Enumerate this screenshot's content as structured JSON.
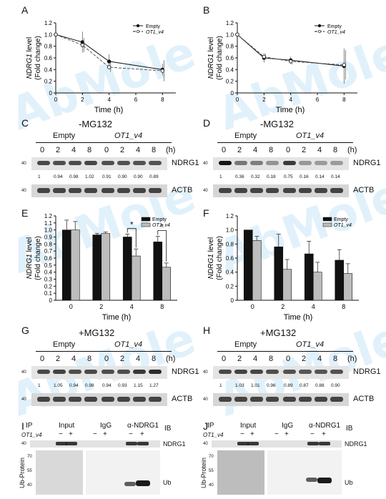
{
  "panel_letters": {
    "A": "A",
    "B": "B",
    "C": "C",
    "D": "D",
    "E": "E",
    "F": "F",
    "G": "G",
    "H": "H",
    "I": "I",
    "J": "J"
  },
  "watermark": "AbMole",
  "lineplots": {
    "ylabel_italic": "NDRG1",
    "ylabel_suffix": " level",
    "ylabel2": "(Fold change)",
    "xlabel": "Time (h)",
    "legend": [
      "Empty",
      "OT1_v4"
    ]
  },
  "barplots": {
    "ylabel_italic": "NDRG1",
    "ylabel_suffix": " level",
    "ylabel2": "(Fold change)",
    "xlabel": "Time (h)",
    "legend": [
      "Empty",
      "OT1_v4"
    ],
    "sig": "*"
  },
  "blots": {
    "C": {
      "title": "-MG132",
      "group1": "Empty",
      "group2": "OT1_v4",
      "times": [
        "0",
        "2",
        "4",
        "8"
      ],
      "unit": "(h)",
      "band1": "NDRG1",
      "band2": "ACTB",
      "mw": "40",
      "quant": [
        "1",
        "0.94",
        "0.98",
        "1.02",
        "0.91",
        "0.90",
        "0.90",
        "0.89"
      ]
    },
    "D": {
      "title": "-MG132",
      "group1": "Empty",
      "group2": "OT1_v4",
      "times": [
        "0",
        "2",
        "4",
        "8"
      ],
      "unit": "(h)",
      "band1": "NDRG1",
      "band2": "ACTB",
      "mw": "40",
      "quant": [
        "1",
        "0.36",
        "0.32",
        "0.18",
        "0.75",
        "0.16",
        "0.14",
        "0.14"
      ]
    },
    "G": {
      "title": "+MG132",
      "group1": "Empty",
      "group2": "OT1_v4",
      "times": [
        "0",
        "2",
        "4",
        "8"
      ],
      "unit": "(h)",
      "band1": "NDRG1",
      "band2": "ACTB",
      "mw": "40",
      "quant": [
        "1",
        "1.05",
        "0.94",
        "0.98",
        "0.94",
        "0.93",
        "1.15",
        "1.27"
      ]
    },
    "H": {
      "title": "+MG132",
      "group1": "Empty",
      "group2": "OT1_v4",
      "times": [
        "0",
        "2",
        "4",
        "8"
      ],
      "unit": "(h)",
      "band1": "NDRG1",
      "band2": "ACTB",
      "mw": "40",
      "quant": [
        "1",
        "1.03",
        "1.01",
        "0.96",
        "0.89",
        "0.87",
        "0.88",
        "0.90"
      ]
    }
  },
  "ip": {
    "IP": "IP",
    "IB": "IB",
    "input": "Input",
    "igg": "IgG",
    "anti": "α-NDRG1",
    "ot1": "OT1_v4",
    "minus": "−",
    "plus": "+",
    "band_ndrg1": "NDRG1",
    "band_ub": "Ub",
    "side": "Ub-Protein",
    "mw_I": [
      "40",
      "70",
      "55",
      "40"
    ],
    "mw_J": [
      "40",
      "70",
      "55",
      "40"
    ]
  },
  "chart_data": [
    {
      "panel": "A",
      "type": "line",
      "x": [
        0,
        2,
        4,
        8
      ],
      "xticks": [
        "0",
        "2",
        "4",
        "6",
        "8"
      ],
      "yticks": [
        "0",
        "0.2",
        "0.4",
        "0.6",
        "0.8",
        "1.0",
        "1.2"
      ],
      "xlim": [
        0,
        9
      ],
      "ylim": [
        0,
        1.2
      ],
      "series": [
        {
          "name": "Empty",
          "values": [
            1.0,
            0.87,
            0.54,
            0.4
          ]
        },
        {
          "name": "OT1_v4",
          "values": [
            1.0,
            0.82,
            0.44,
            0.38
          ]
        }
      ],
      "errors": [
        [
          0,
          0.18,
          0.12,
          0.1
        ],
        [
          0,
          0.12,
          0.08,
          0.18
        ]
      ]
    },
    {
      "panel": "B",
      "type": "line",
      "x": [
        0,
        2,
        4,
        8
      ],
      "xticks": [
        "0",
        "2",
        "4",
        "6",
        "8"
      ],
      "yticks": [
        "0",
        "0.2",
        "0.4",
        "0.6",
        "0.8",
        "1.0",
        "1.2"
      ],
      "xlim": [
        0,
        9
      ],
      "ylim": [
        0,
        1.2
      ],
      "series": [
        {
          "name": "Empty",
          "values": [
            1.0,
            0.6,
            0.56,
            0.46
          ]
        },
        {
          "name": "OT1_v4",
          "values": [
            1.0,
            0.62,
            0.54,
            0.48
          ]
        }
      ],
      "errors": [
        [
          0,
          0.08,
          0.06,
          0.3
        ],
        [
          0,
          0.05,
          0.05,
          0.25
        ]
      ]
    },
    {
      "panel": "E",
      "type": "bar",
      "categories": [
        "0",
        "2",
        "4",
        "8"
      ],
      "yticks": [
        "0",
        "0.1",
        "0.2",
        "0.3",
        "0.4",
        "0.5",
        "0.6",
        "0.7",
        "0.8",
        "0.9",
        "1.0",
        "1.1",
        "1.2"
      ],
      "ylim": [
        0,
        1.2
      ],
      "series": [
        {
          "name": "Empty",
          "values": [
            1.0,
            0.93,
            0.9,
            0.83
          ]
        },
        {
          "name": "OT1_v4",
          "values": [
            1.0,
            0.95,
            0.63,
            0.47
          ]
        }
      ],
      "errors": [
        [
          0.14,
          0.02,
          0.04,
          0.08
        ],
        [
          0.12,
          0.02,
          0.1,
          0.06
        ]
      ]
    },
    {
      "panel": "F",
      "type": "bar",
      "categories": [
        "0",
        "2",
        "4",
        "8"
      ],
      "yticks": [
        "0",
        "0.2",
        "0.4",
        "0.6",
        "0.8",
        "1.0",
        "1.2"
      ],
      "ylim": [
        0,
        1.2
      ],
      "series": [
        {
          "name": "Empty",
          "values": [
            1.0,
            0.76,
            0.66,
            0.57
          ]
        },
        {
          "name": "OT1_v4",
          "values": [
            0.85,
            0.44,
            0.4,
            0.38
          ]
        }
      ],
      "errors": [
        [
          0.0,
          0.18,
          0.18,
          0.15
        ],
        [
          0.06,
          0.14,
          0.14,
          0.14
        ]
      ]
    }
  ]
}
